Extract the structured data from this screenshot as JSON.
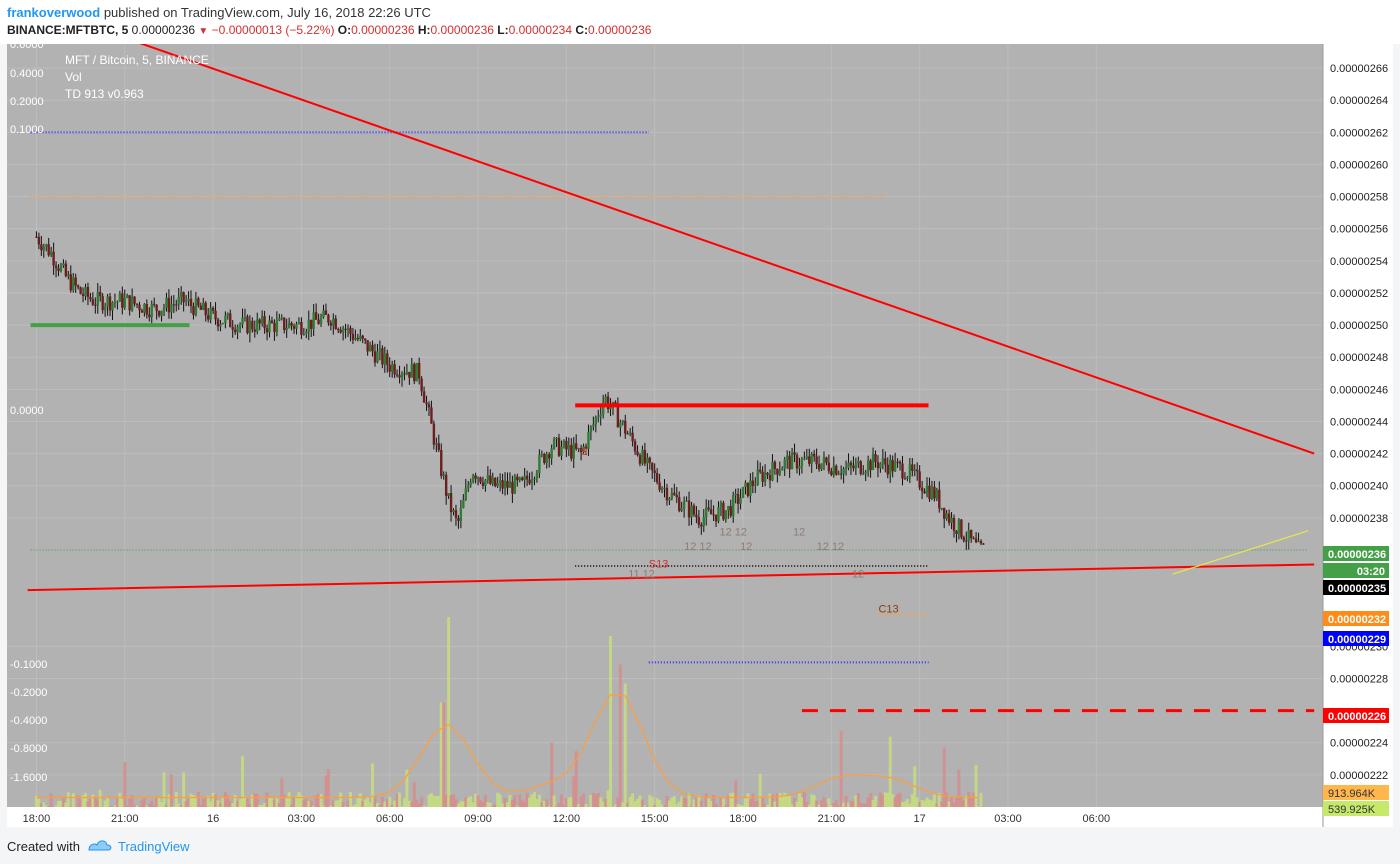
{
  "header": {
    "author": "frankoverwood",
    "published": "published on TradingView.com, July 16, 2018 22:26 UTC",
    "symbol": "BINANCE:MFTBTC, 5",
    "last": "0.00000236",
    "change": "−0.00000013 (−5.22%)",
    "o_label": "O:",
    "o": "0.00000236",
    "h_label": "H:",
    "h": "0.00000236",
    "l_label": "L:",
    "l": "0.00000234",
    "c_label": "C:",
    "c": "0.00000236"
  },
  "legend": {
    "title": "MFT / Bitcoin, 5, BINANCE",
    "vol": "Vol",
    "td": "TD 913 v0.963"
  },
  "footer": {
    "created": "Created with",
    "brand": "TradingView"
  },
  "colors": {
    "background": "#b2b2b2",
    "grid": "#bdbdbd",
    "up": "#2e7d32",
    "down": "#6d1f1f",
    "trend": "#ff0000",
    "blue_dots": "#2a2aff",
    "orange_dots": "#ff9d3a",
    "green_line": "#43a047"
  },
  "chart_data": {
    "type": "candlestick",
    "x_ticks": [
      "18:00",
      "21:00",
      "16",
      "03:00",
      "06:00",
      "09:00",
      "12:00",
      "15:00",
      "18:00",
      "21:00",
      "17",
      "03:00",
      "06:00"
    ],
    "price_ticks": [
      "0.00000266",
      "0.00000264",
      "0.00000262",
      "0.00000260",
      "0.00000258",
      "0.00000256",
      "0.00000254",
      "0.00000252",
      "0.00000250",
      "0.00000248",
      "0.00000246",
      "0.00000244",
      "0.00000242",
      "0.00000240",
      "0.00000238",
      "0.00000230",
      "0.00000228",
      "0.00000224",
      "0.00000222"
    ],
    "price_ylim": [
      2.2e-06,
      2.675e-06
    ],
    "left_axis_ticks": [
      "0.6000",
      "0.4000",
      "0.2000",
      "0.1000",
      "0.0000",
      "-0.1000",
      "-0.2000",
      "-0.4000",
      "-0.8000",
      "-1.6000"
    ],
    "price_badges": [
      {
        "label": "0.00000236",
        "color": "#43a047"
      },
      {
        "label": "03:20",
        "color": "#43a047"
      },
      {
        "label": "0.00000235",
        "color": "#000000"
      },
      {
        "label": "0.00000232",
        "color": "#ff8c1a"
      },
      {
        "label": "0.00000229",
        "color": "#0000ff"
      },
      {
        "label": "0.00000226",
        "color": "#ff0000"
      }
    ],
    "volume_badges": [
      {
        "label": "913.964K",
        "color": "#ffb74d"
      },
      {
        "label": "539.925K",
        "color": "#c6e86b"
      }
    ],
    "price_series": [
      {
        "t": 0.0,
        "p": 2.555
      },
      {
        "t": 0.5,
        "p": 2.545
      },
      {
        "t": 1.0,
        "p": 2.53
      },
      {
        "t": 1.5,
        "p": 2.52
      },
      {
        "t": 2.0,
        "p": 2.515
      },
      {
        "t": 3.0,
        "p": 2.515
      },
      {
        "t": 4.0,
        "p": 2.51
      },
      {
        "t": 5.0,
        "p": 2.515
      },
      {
        "t": 6.0,
        "p": 2.505
      },
      {
        "t": 7.0,
        "p": 2.5
      },
      {
        "t": 8.0,
        "p": 2.5
      },
      {
        "t": 9.0,
        "p": 2.5
      },
      {
        "t": 10.0,
        "p": 2.505
      },
      {
        "t": 11.0,
        "p": 2.49
      },
      {
        "t": 12.0,
        "p": 2.475
      },
      {
        "t": 13.0,
        "p": 2.47
      },
      {
        "t": 14.0,
        "p": 2.39
      },
      {
        "t": 14.3,
        "p": 2.375
      },
      {
        "t": 14.8,
        "p": 2.41
      },
      {
        "t": 15.5,
        "p": 2.4
      },
      {
        "t": 16.5,
        "p": 2.4
      },
      {
        "t": 17.5,
        "p": 2.425
      },
      {
        "t": 18.5,
        "p": 2.42
      },
      {
        "t": 19.3,
        "p": 2.455
      },
      {
        "t": 20.0,
        "p": 2.435
      },
      {
        "t": 20.8,
        "p": 2.41
      },
      {
        "t": 21.5,
        "p": 2.395
      },
      {
        "t": 22.5,
        "p": 2.38
      },
      {
        "t": 23.5,
        "p": 2.385
      },
      {
        "t": 24.5,
        "p": 2.405
      },
      {
        "t": 25.5,
        "p": 2.415
      },
      {
        "t": 26.5,
        "p": 2.415
      },
      {
        "t": 27.5,
        "p": 2.41
      },
      {
        "t": 28.5,
        "p": 2.415
      },
      {
        "t": 29.5,
        "p": 2.41
      },
      {
        "t": 30.5,
        "p": 2.395
      },
      {
        "t": 31.0,
        "p": 2.38
      },
      {
        "t": 31.5,
        "p": 2.37
      },
      {
        "t": 32.0,
        "p": 2.36
      },
      {
        "t": 32.2,
        "p": 2.36
      }
    ],
    "trendlines": [
      {
        "color": "#ff0000",
        "from": {
          "t": -0.3,
          "p": 2.7
        },
        "to": {
          "t": 43.4,
          "p": 2.42
        }
      },
      {
        "color": "#ff0000",
        "from": {
          "t": -0.3,
          "p": 2.335
        },
        "to": {
          "t": 43.4,
          "p": 2.351
        }
      }
    ],
    "horizontal_levels": [
      {
        "kind": "green-solid",
        "p": 2.5,
        "t0": -0.2,
        "t1": 5.2
      },
      {
        "kind": "blue-dotted",
        "p": 2.62,
        "t0": -0.2,
        "t1": 20.8
      },
      {
        "kind": "orange-dotted",
        "p": 2.58,
        "t0": -0.2,
        "t1": 28.8
      },
      {
        "kind": "red-thick",
        "p": 2.45,
        "t0": 18.3,
        "t1": 30.3
      },
      {
        "kind": "green-dotted",
        "p": 2.36,
        "t0": -0.2,
        "t1": 43.2
      },
      {
        "kind": "black-dotted",
        "p": 2.35,
        "t0": 18.3,
        "t1": 30.3
      },
      {
        "kind": "orange-dotted-short",
        "p": 2.32,
        "t0": 28.6,
        "t1": 30.3
      },
      {
        "kind": "blue-dotted",
        "p": 2.29,
        "t0": 20.8,
        "t1": 30.3
      },
      {
        "kind": "red-dashed",
        "p": 2.26,
        "t0": 26.0,
        "t1": 43.4
      }
    ],
    "annotations": [
      {
        "text": "9",
        "t": 18.5,
        "p": 2.419,
        "color": "#d32f2f"
      },
      {
        "text": "S13",
        "t": 20.8,
        "p": 2.349,
        "color": "#d32f2f"
      },
      {
        "text": "C13",
        "t": 28.6,
        "p": 2.321,
        "color": "#8d3b0f"
      },
      {
        "text": "12 12",
        "t": 23.2,
        "p": 2.369,
        "color": "#8f7b74"
      },
      {
        "text": "12",
        "t": 25.7,
        "p": 2.369,
        "color": "#8f7b74"
      },
      {
        "text": "12 12",
        "t": 22.0,
        "p": 2.36,
        "color": "#8f7b74"
      },
      {
        "text": "12",
        "t": 23.9,
        "p": 2.36,
        "color": "#8f7b74"
      },
      {
        "text": "12 12",
        "t": 26.5,
        "p": 2.36,
        "color": "#8f7b74"
      },
      {
        "text": "11 12",
        "t": 20.1,
        "p": 2.343,
        "color": "#8f7b74"
      },
      {
        "text": "12",
        "t": 27.7,
        "p": 2.343,
        "color": "#8f7b74"
      }
    ],
    "volume_peaks": [
      {
        "t": 14.0,
        "v": 1.0
      },
      {
        "t": 13.8,
        "v": 0.55
      },
      {
        "t": 19.5,
        "v": 0.9
      },
      {
        "t": 19.8,
        "v": 0.75
      },
      {
        "t": 20.0,
        "v": 0.65
      },
      {
        "t": 27.3,
        "v": 0.4
      },
      {
        "t": 29.0,
        "v": 0.37
      },
      {
        "t": 17.5,
        "v": 0.25
      }
    ]
  }
}
